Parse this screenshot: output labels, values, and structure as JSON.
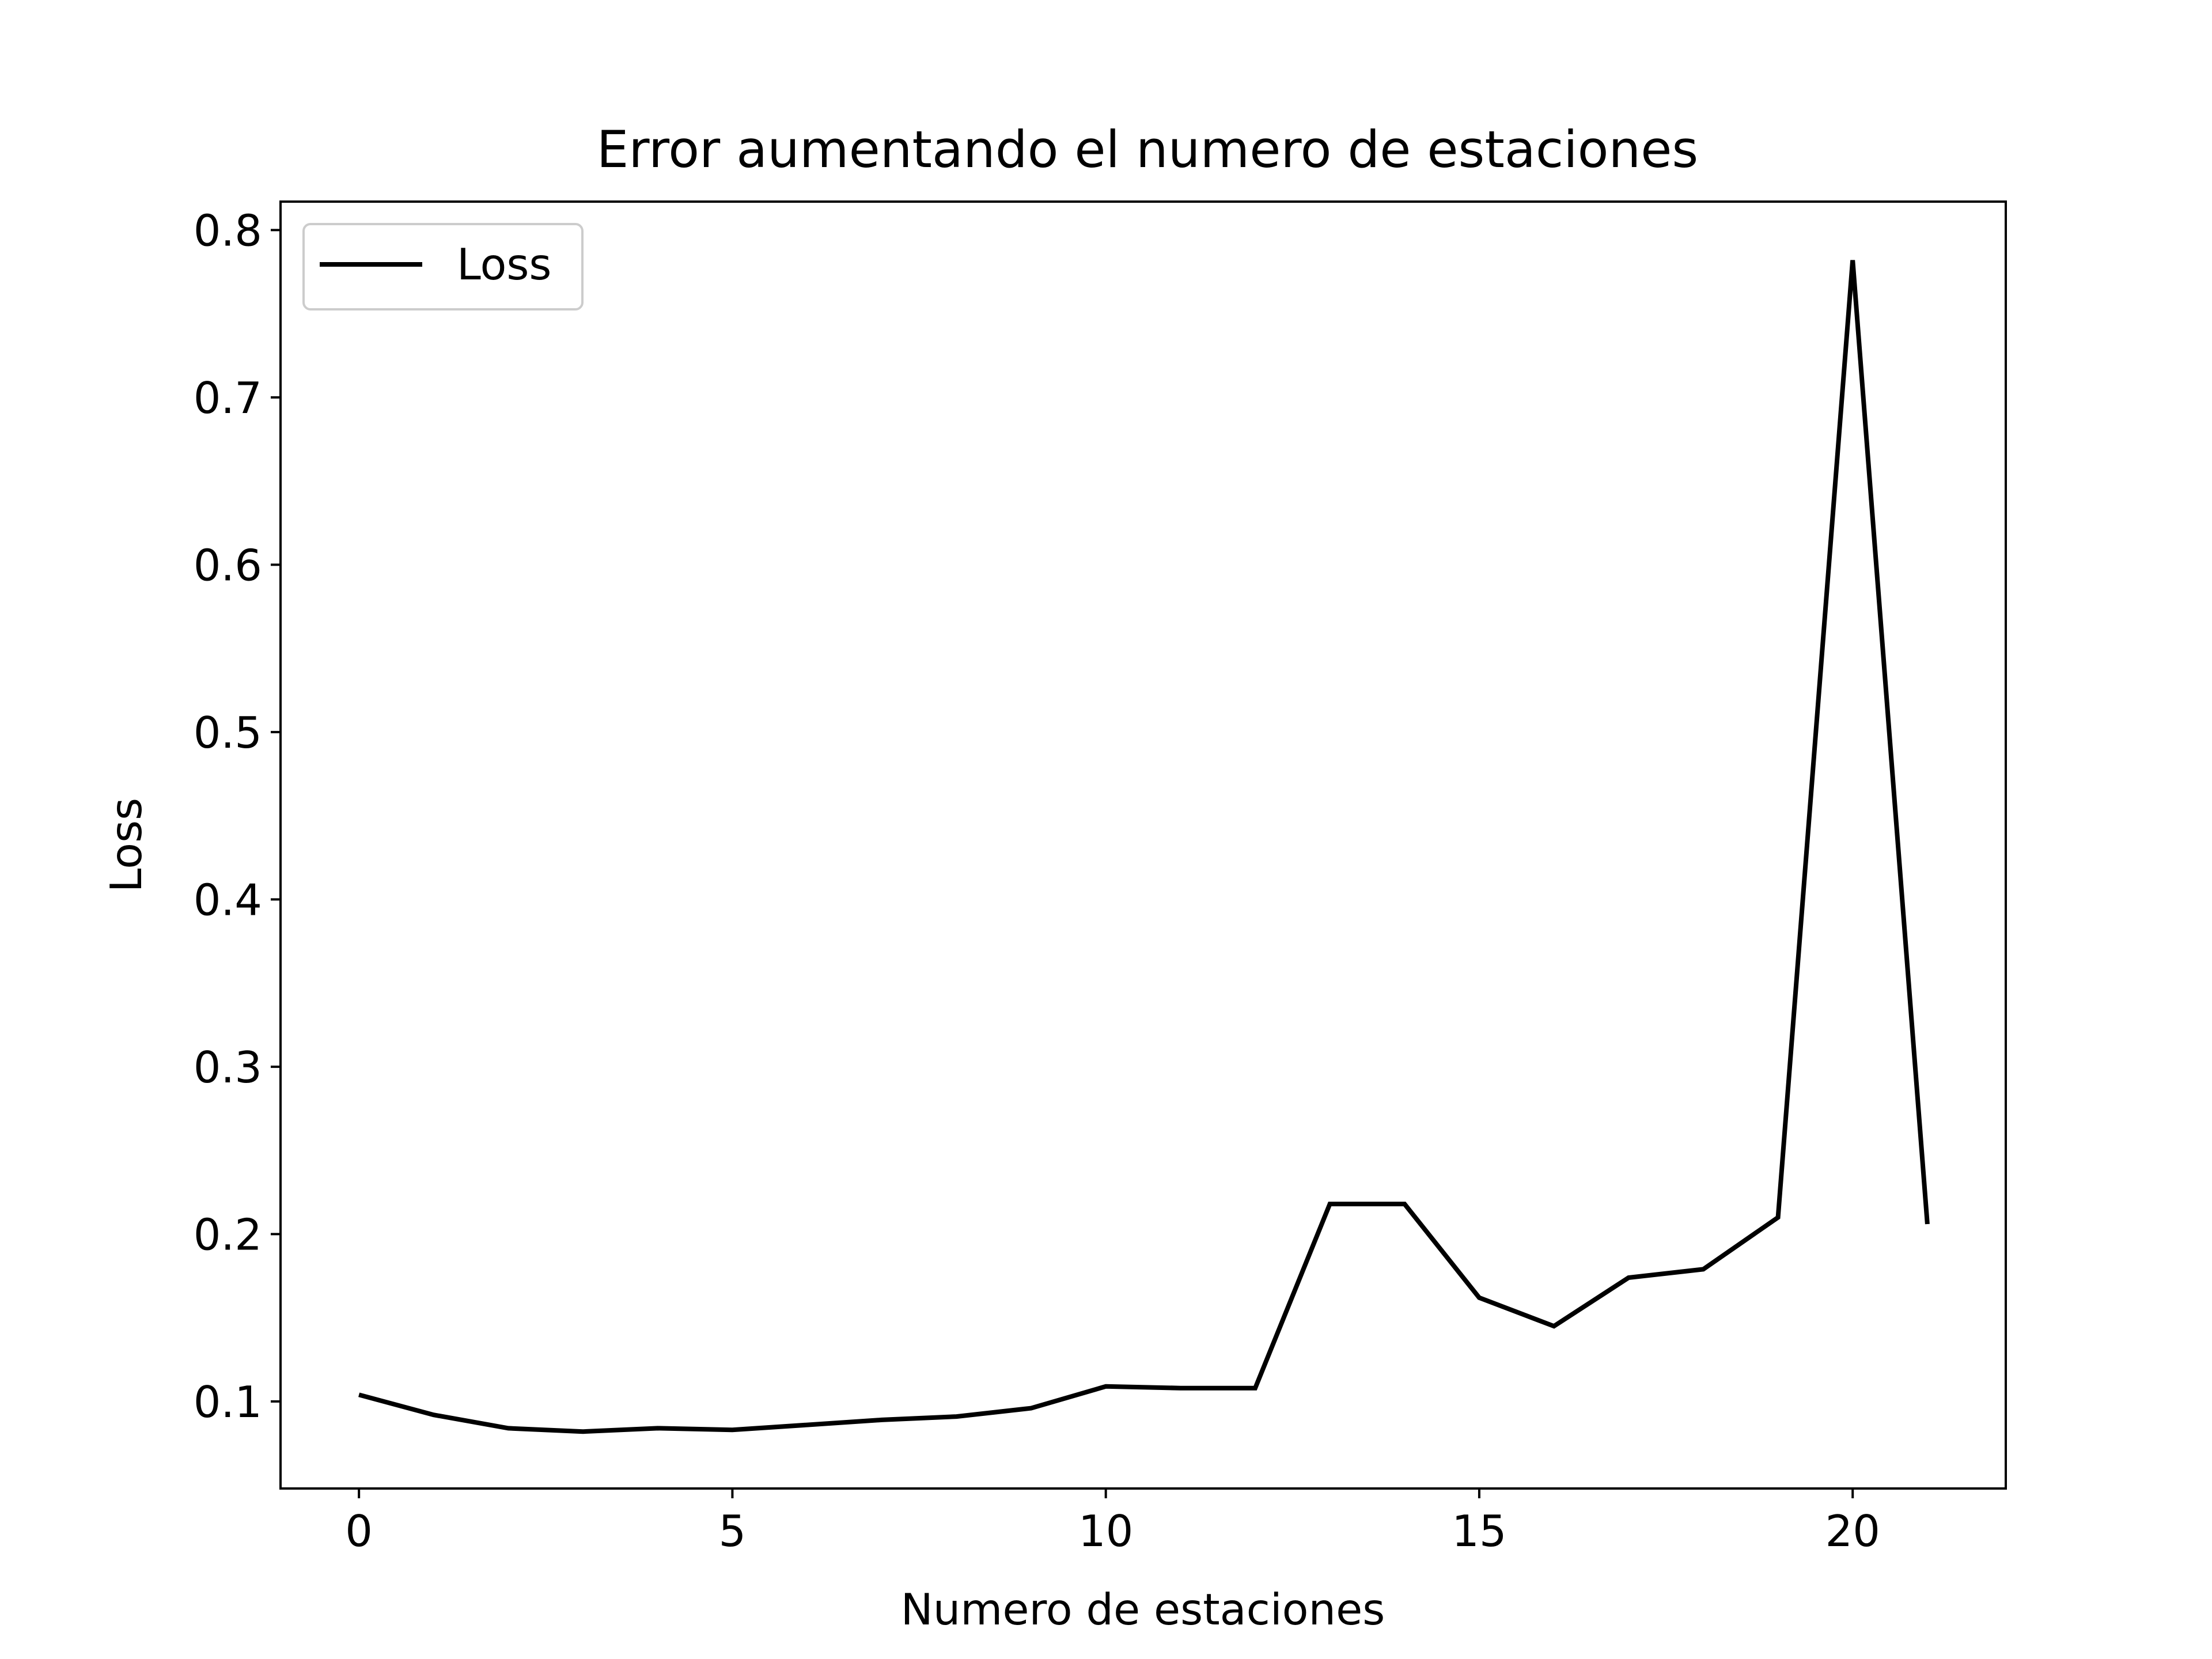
{
  "chart_data": {
    "type": "line",
    "title": "Error aumentando el numero de estaciones",
    "xlabel": "Numero de estaciones",
    "ylabel": "Loss",
    "xlim": [
      -1.05,
      22.05
    ],
    "ylim": [
      0.048,
      0.817
    ],
    "xticks": [
      0,
      5,
      10,
      15,
      20
    ],
    "xtick_labels": [
      "0",
      "5",
      "10",
      "15",
      "20"
    ],
    "yticks": [
      0.1,
      0.2,
      0.3,
      0.4,
      0.5,
      0.6,
      0.7,
      0.8
    ],
    "ytick_labels": [
      "0.1",
      "0.2",
      "0.3",
      "0.4",
      "0.5",
      "0.6",
      "0.7",
      "0.8"
    ],
    "grid": false,
    "legend_position": "upper left",
    "series": [
      {
        "name": "Loss",
        "color": "#000000",
        "x": [
          0,
          1,
          2,
          3,
          4,
          5,
          6,
          7,
          8,
          9,
          10,
          11,
          12,
          13,
          14,
          15,
          16,
          17,
          18,
          19,
          20,
          21
        ],
        "y": [
          0.104,
          0.092,
          0.084,
          0.082,
          0.084,
          0.083,
          0.086,
          0.089,
          0.091,
          0.096,
          0.109,
          0.108,
          0.108,
          0.218,
          0.218,
          0.162,
          0.145,
          0.174,
          0.179,
          0.21,
          0.782,
          0.206
        ]
      }
    ]
  }
}
